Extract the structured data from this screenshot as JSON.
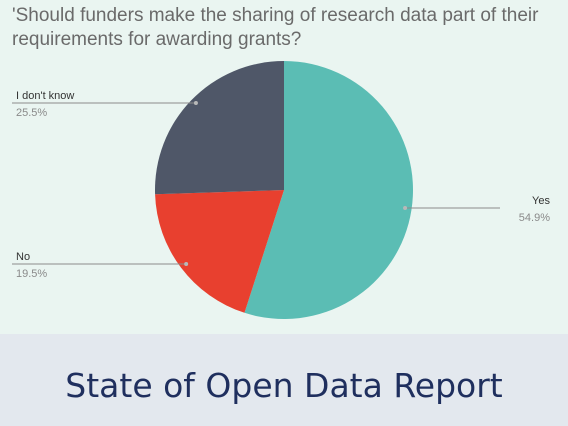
{
  "chart_data": {
    "type": "pie",
    "title": "'Should funders make the sharing of research data part of their requirements for awarding grants?",
    "slices": [
      {
        "label": "Yes",
        "percent_label": "54.9%",
        "value": 54.9,
        "color": "#5bbdb4"
      },
      {
        "label": "No",
        "percent_label": "19.5%",
        "value": 19.5,
        "color": "#e8402f"
      },
      {
        "label": "I don't know",
        "percent_label": "25.5%",
        "value": 25.5,
        "color": "#4f5768"
      }
    ],
    "start": "12 o'clock",
    "direction": "clockwise"
  },
  "footer": {
    "title": "State of Open Data Report"
  }
}
